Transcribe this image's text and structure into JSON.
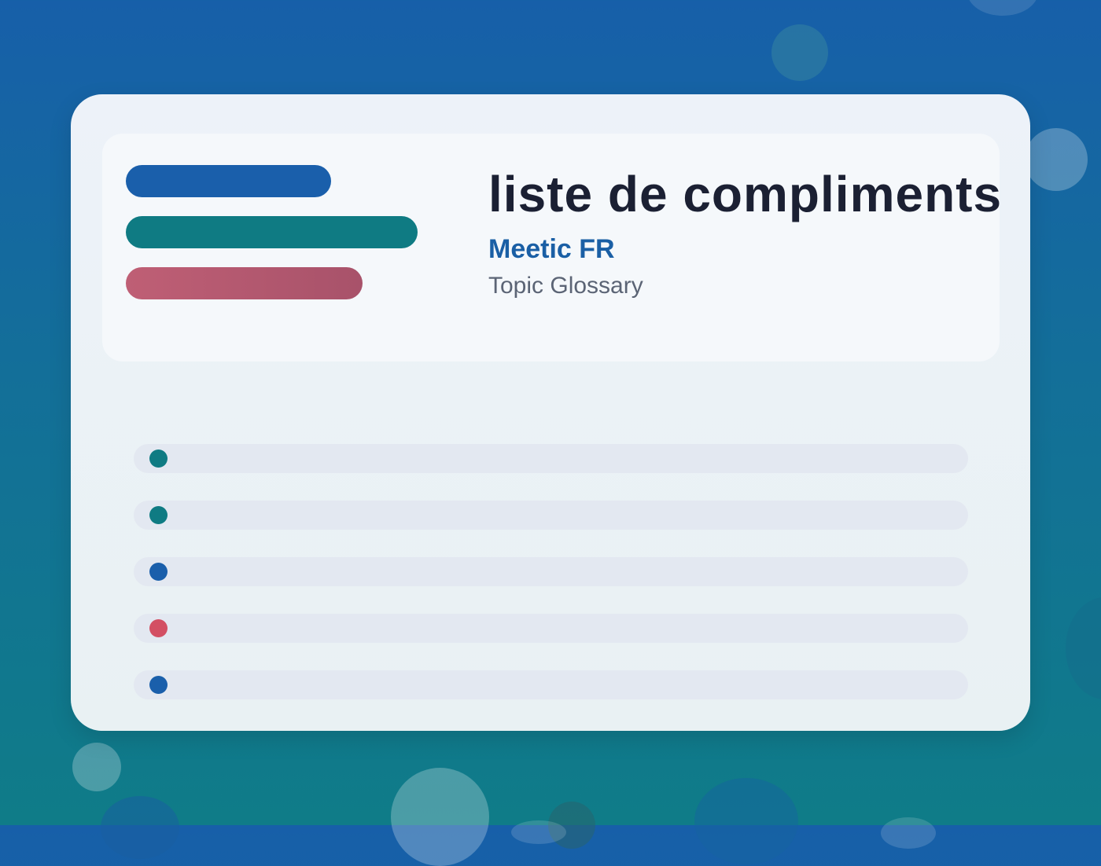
{
  "header": {
    "title": "liste de compliments",
    "brand": "Meetic FR",
    "subtitle": "Topic Glossary"
  },
  "colors": {
    "background_top": "#175fa9",
    "background_bottom": "#0f7c88",
    "card": "#edf2f9",
    "accent_blue": "#1a5fab",
    "accent_teal": "#0f7b83",
    "accent_pink": "#d34f63"
  },
  "legend_bars": [
    {
      "color": "blue"
    },
    {
      "color": "teal"
    },
    {
      "color": "pink"
    }
  ],
  "list": {
    "items": [
      {
        "dot_color": "#0f7b83"
      },
      {
        "dot_color": "#0f7b83"
      },
      {
        "dot_color": "#1a5fab"
      },
      {
        "dot_color": "#d34f63"
      },
      {
        "dot_color": "#1a5fab"
      }
    ]
  }
}
